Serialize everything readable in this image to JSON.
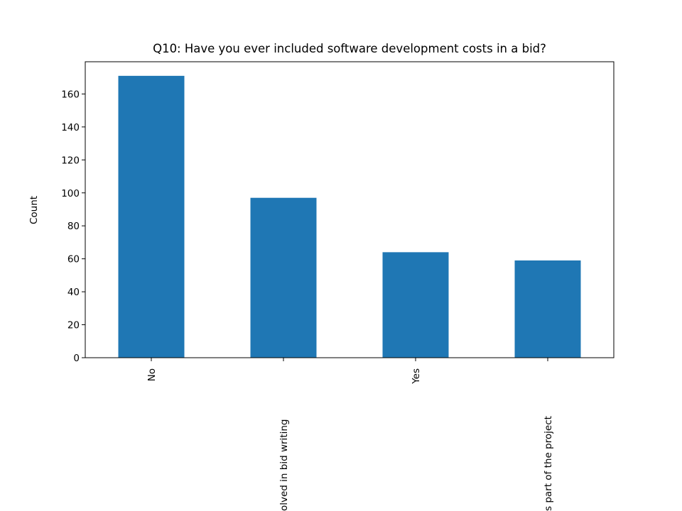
{
  "chart_data": {
    "type": "bar",
    "title": "Q10: Have you ever included software development costs in a bid?",
    "y_label": "Count",
    "categories": [
      "No",
      "olved in bid writing",
      "Yes",
      "s part of the project"
    ],
    "values": [
      171,
      97,
      64,
      59
    ],
    "color": "#1f77b4",
    "ylim": [
      0,
      179.55
    ],
    "yticks": [
      0,
      20,
      40,
      60,
      80,
      100,
      120,
      140,
      160
    ],
    "grid": false
  }
}
